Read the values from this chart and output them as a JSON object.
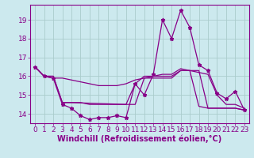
{
  "background_color": "#cce9ee",
  "grid_color": "#aacccc",
  "line_color": "#880088",
  "xlabel": "Windchill (Refroidissement éolien,°C)",
  "xlim": [
    -0.5,
    23.5
  ],
  "ylim": [
    13.5,
    19.8
  ],
  "yticks": [
    14,
    15,
    16,
    17,
    18,
    19
  ],
  "xticks": [
    0,
    1,
    2,
    3,
    4,
    5,
    6,
    7,
    8,
    9,
    10,
    11,
    12,
    13,
    14,
    15,
    16,
    17,
    18,
    19,
    20,
    21,
    22,
    23
  ],
  "s1_x": [
    0,
    1,
    2,
    3,
    4,
    5,
    6,
    7,
    8,
    9,
    10,
    11,
    12,
    13,
    14,
    15,
    16,
    17,
    18,
    19,
    20,
    21,
    22,
    23
  ],
  "s1_y": [
    16.5,
    16.0,
    15.9,
    14.5,
    14.3,
    13.9,
    13.7,
    13.8,
    13.8,
    13.9,
    13.8,
    15.6,
    15.0,
    16.1,
    19.0,
    18.0,
    19.5,
    18.6,
    16.6,
    16.3,
    15.1,
    14.8,
    15.2,
    14.2
  ],
  "s2_x": [
    0,
    1,
    2,
    3,
    4,
    5,
    6,
    7,
    8,
    9,
    10,
    11,
    12,
    13,
    14,
    15,
    16,
    17,
    18,
    19,
    20,
    21,
    22,
    23
  ],
  "s2_y": [
    16.5,
    16.0,
    15.9,
    15.9,
    15.8,
    15.7,
    15.6,
    15.5,
    15.5,
    15.5,
    15.6,
    15.8,
    15.9,
    16.0,
    16.1,
    16.1,
    16.4,
    16.3,
    16.2,
    16.1,
    15.0,
    14.5,
    14.5,
    14.3
  ],
  "s3_x": [
    0,
    1,
    2,
    3,
    4,
    5,
    6,
    7,
    8,
    9,
    10,
    11,
    12,
    13,
    14,
    15,
    16,
    17,
    18,
    19,
    20,
    21,
    22,
    23
  ],
  "s3_y": [
    16.5,
    16.0,
    16.0,
    14.6,
    14.6,
    14.6,
    14.5,
    14.5,
    14.5,
    14.5,
    14.5,
    14.5,
    15.9,
    15.9,
    15.9,
    15.9,
    16.3,
    16.3,
    14.4,
    14.3,
    14.3,
    14.3,
    14.3,
    14.2
  ],
  "s4_x": [
    0,
    1,
    2,
    3,
    4,
    10,
    11,
    12,
    13,
    14,
    15,
    16,
    17,
    18,
    19,
    20,
    21,
    22,
    23
  ],
  "s4_y": [
    16.5,
    16.0,
    16.0,
    14.6,
    14.6,
    14.5,
    15.6,
    16.0,
    16.0,
    16.0,
    16.0,
    16.3,
    16.3,
    16.3,
    14.3,
    14.3,
    14.3,
    14.3,
    14.2
  ],
  "tick_fontsize": 6.5,
  "xlabel_fontsize": 7
}
